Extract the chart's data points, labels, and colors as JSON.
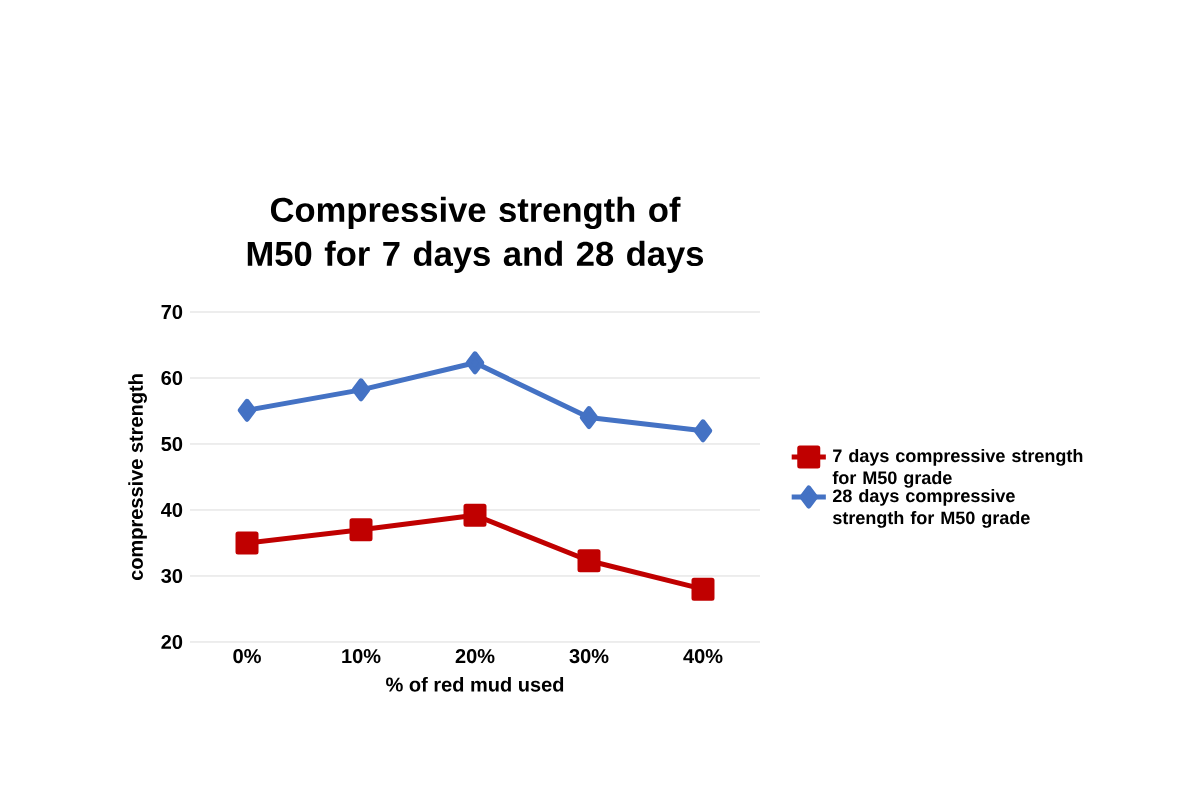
{
  "chart_data": {
    "type": "line",
    "title": "Compressive strength of M50 for 7 days and 28 days",
    "xlabel": "% of red mud used",
    "ylabel": "compressive strength",
    "categories": [
      "0%",
      "10%",
      "20%",
      "30%",
      "40%"
    ],
    "series": [
      {
        "name": "7 days compressive strength for M50 grade",
        "color": "#c00000",
        "marker": "square",
        "values": [
          35,
          37,
          39.2,
          32.3,
          28
        ]
      },
      {
        "name": "28 days compressive strength for M50 grade",
        "color": "#4472c4",
        "marker": "diamond",
        "values": [
          55.1,
          58.2,
          62.3,
          54,
          52
        ]
      }
    ],
    "ylim": [
      20,
      70
    ],
    "yticks": [
      20,
      30,
      40,
      50,
      60,
      70
    ],
    "grid": "y",
    "legend": "right"
  }
}
